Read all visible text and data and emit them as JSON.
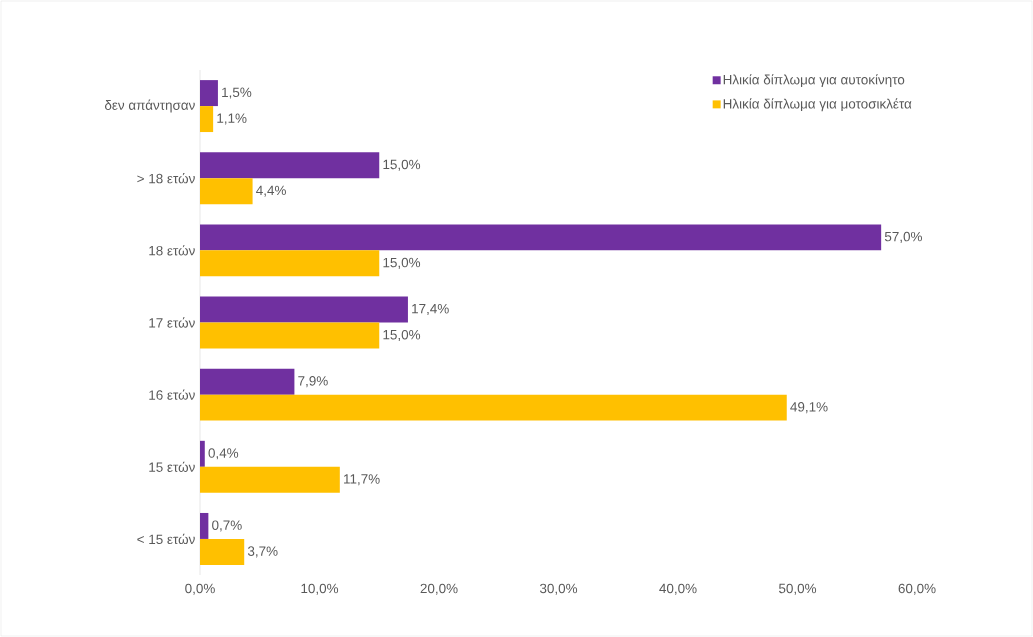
{
  "chart_data": {
    "type": "bar",
    "orientation": "horizontal",
    "categories": [
      "δεν απάντησαν",
      "> 18 ετών",
      "18 ετών",
      "17 ετών",
      "16 ετών",
      "15 ετών",
      "< 15 ετών"
    ],
    "series": [
      {
        "name": "Ηλικία δίπλωμα για αυτοκίνητο",
        "color": "#7030a0",
        "values": [
          1.5,
          15.0,
          57.0,
          17.4,
          7.9,
          0.4,
          0.7
        ],
        "value_labels": [
          "1,5%",
          "15,0%",
          "57,0%",
          "17,4%",
          "7,9%",
          "0,4%",
          "0,7%"
        ]
      },
      {
        "name": "Ηλικία δίπλωμα για μοτοσικλέτα",
        "color": "#ffc000",
        "values": [
          1.1,
          4.4,
          15.0,
          15.0,
          49.1,
          11.7,
          3.7
        ],
        "value_labels": [
          "1,1%",
          "4,4%",
          "15,0%",
          "15,0%",
          "49,1%",
          "11,7%",
          "3,7%"
        ]
      }
    ],
    "xlim": [
      0,
      60
    ],
    "xticks": [
      {
        "value": 0,
        "label": "0,0%"
      },
      {
        "value": 10,
        "label": "10,0%"
      },
      {
        "value": 20,
        "label": "20,0%"
      },
      {
        "value": 30,
        "label": "30,0%"
      },
      {
        "value": 40,
        "label": "40,0%"
      },
      {
        "value": 50,
        "label": "50,0%"
      },
      {
        "value": 60,
        "label": "60,0%"
      }
    ],
    "legend": "top right",
    "grid": false
  }
}
